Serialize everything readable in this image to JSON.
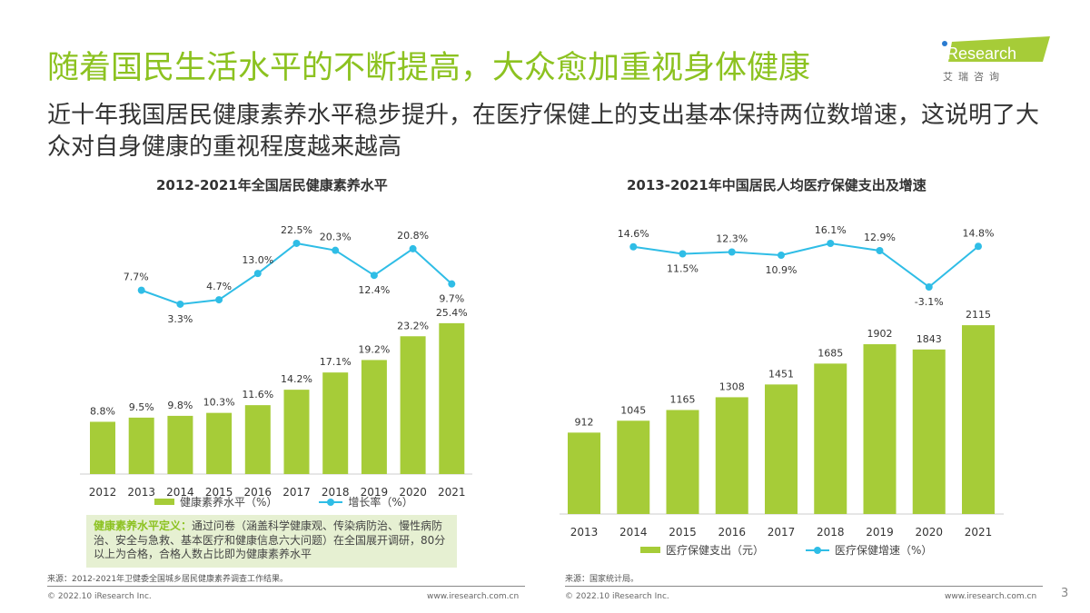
{
  "title": "随着国民生活水平的不断提高，大众愈加重视身体健康",
  "subtitle": "近十年我国居民健康素养水平稳步提升，在医疗保健上的支出基本保持两位数增速，这说明了大众对自身健康的重视程度越来越高",
  "logo": {
    "brand": "iResearch",
    "cn": "艾 瑞 咨 询"
  },
  "definition": {
    "label": "健康素养水平定义：",
    "text": "通过问卷（涵盖科学健康观、传染病防治、慢性病防治、安全与急救、基本医疗和健康信息六大问题）在全国展开调研，80分以上为合格，合格人数占比即为健康素养水平"
  },
  "sources": {
    "left": "来源：2012-2021年卫健委全国城乡居民健康素养调查工作结果。",
    "right": "来源：国家统计局。"
  },
  "footer": {
    "copyright": "© 2022.10 iResearch Inc.",
    "url": "www.iresearch.com.cn",
    "page": "3"
  },
  "colors": {
    "accent": "#8cc220",
    "bar": "#a6cc38",
    "line": "#2fbde6"
  },
  "chart_data": [
    {
      "type": "bar+line",
      "title": "2012-2021年全国居民健康素养水平",
      "categories": [
        "2012",
        "2013",
        "2014",
        "2015",
        "2016",
        "2017",
        "2018",
        "2019",
        "2020",
        "2021"
      ],
      "series": [
        {
          "name": "健康素养水平（%）",
          "type": "bar",
          "values": [
            8.8,
            9.5,
            9.8,
            10.3,
            11.6,
            14.2,
            17.1,
            19.2,
            23.2,
            25.4
          ],
          "labels": [
            "8.8%",
            "9.5%",
            "9.8%",
            "10.3%",
            "11.6%",
            "14.2%",
            "17.1%",
            "19.2%",
            "23.2%",
            "25.4%"
          ]
        },
        {
          "name": "增长率（%）",
          "type": "line",
          "values": [
            null,
            7.7,
            3.3,
            4.7,
            13.0,
            22.5,
            20.3,
            12.4,
            20.8,
            9.7
          ],
          "labels": [
            null,
            "7.7%",
            "3.3%",
            "4.7%",
            "13.0%",
            "22.5%",
            "20.3%",
            "12.4%",
            "20.8%",
            "9.7%"
          ]
        }
      ],
      "legend": "bottom",
      "grid": false
    },
    {
      "type": "bar+line",
      "title": "2013-2021年中国居民人均医疗保健支出及增速",
      "categories": [
        "2013",
        "2014",
        "2015",
        "2016",
        "2017",
        "2018",
        "2019",
        "2020",
        "2021"
      ],
      "series": [
        {
          "name": "医疗保健支出（元）",
          "type": "bar",
          "values": [
            912,
            1045,
            1165,
            1308,
            1451,
            1685,
            1902,
            1843,
            2115
          ],
          "labels": [
            "912",
            "1045",
            "1165",
            "1308",
            "1451",
            "1685",
            "1902",
            "1843",
            "2115"
          ]
        },
        {
          "name": "医疗保健增速（%）",
          "type": "line",
          "values": [
            null,
            14.6,
            11.5,
            12.3,
            10.9,
            16.1,
            12.9,
            -3.1,
            14.8
          ],
          "labels": [
            null,
            "14.6%",
            "11.5%",
            "12.3%",
            "10.9%",
            "16.1%",
            "12.9%",
            "-3.1%",
            "14.8%"
          ]
        }
      ],
      "legend": "bottom",
      "grid": false
    }
  ]
}
